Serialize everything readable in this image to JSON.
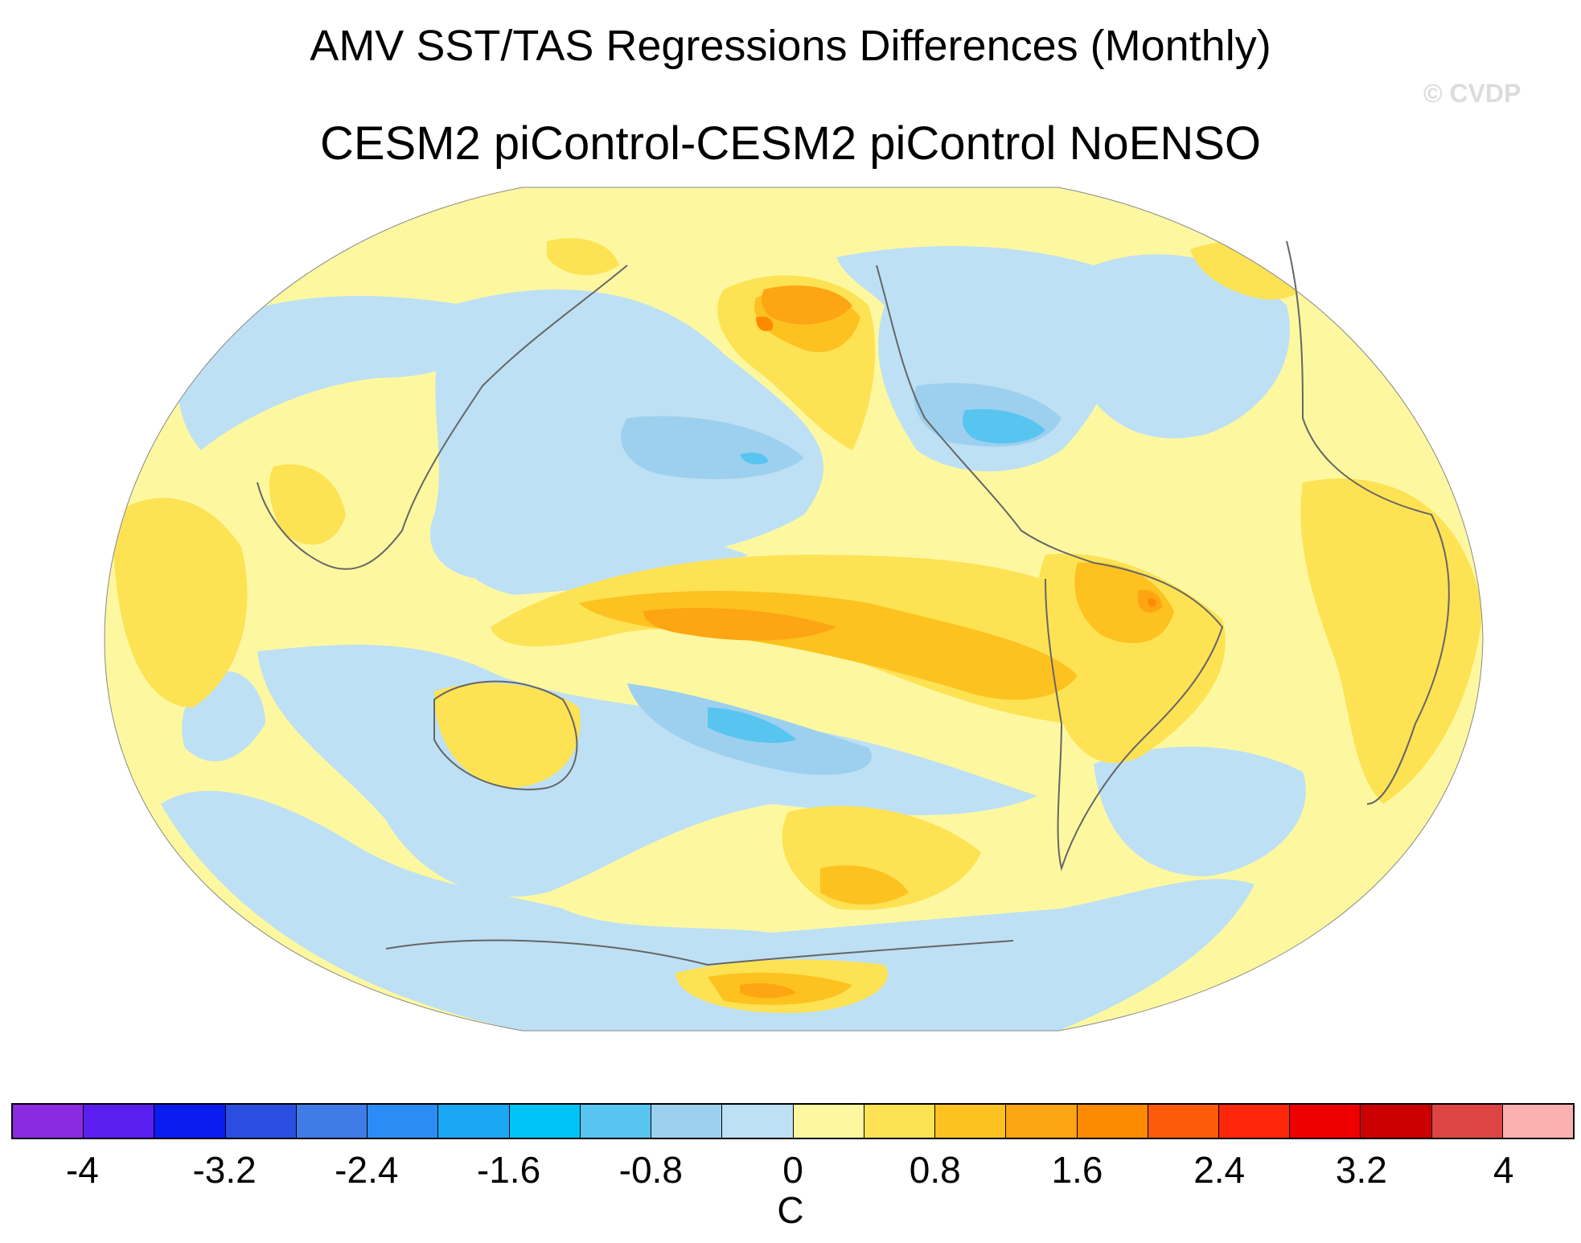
{
  "title": "AMV SST/TAS Regressions Differences (Monthly)",
  "subtitle": "CESM2 piControl-CESM2 piControl NoENSO",
  "watermark": "© CVDP",
  "map": {
    "projection": "Robinson (Pacific-centered)",
    "variable": "SST/TAS regression difference",
    "units": "C",
    "background_level_color": "#fdf8a0"
  },
  "colorbar": {
    "units": "C",
    "colors": [
      "#8a2be2",
      "#5a1ff0",
      "#0a1cf0",
      "#2a4fe0",
      "#3f7ce8",
      "#2c8cf5",
      "#1aa8f5",
      "#00c4f8",
      "#58c5f0",
      "#9dd0ee",
      "#bde0f4",
      "#fdf8a0",
      "#fde254",
      "#fdc21f",
      "#fda512",
      "#fd8a00",
      "#fd5a0a",
      "#fd260a",
      "#ee0000",
      "#cc0000",
      "#dd4444",
      "#fbb0b0"
    ],
    "tick_values": [
      "-4",
      "-3.2",
      "-2.4",
      "-1.6",
      "-0.8",
      "0",
      "0.8",
      "1.6",
      "2.4",
      "3.2",
      "4"
    ]
  }
}
